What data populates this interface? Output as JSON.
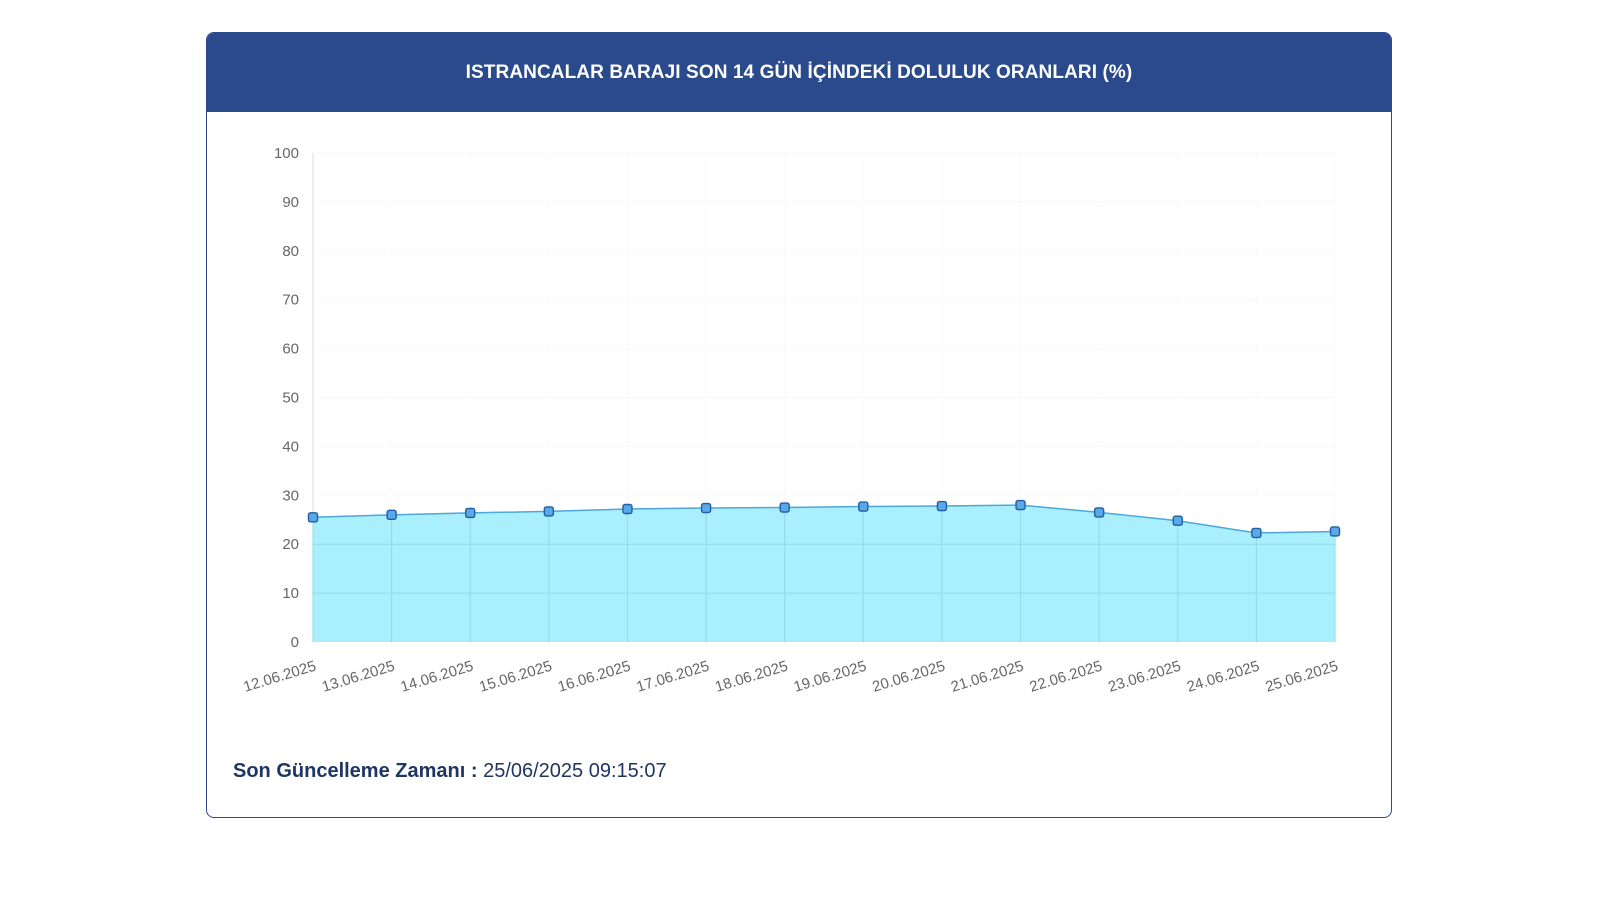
{
  "header": {
    "title": "ISTRANCALAR BARAJI SON 14 GÜN İÇİNDEKİ DOLULUK ORANLARI (%)"
  },
  "footer": {
    "update_label": "Son Güncelleme Zamanı :",
    "update_value": "25/06/2025 09:15:07"
  },
  "colors": {
    "header_bg": "#2b4a8b",
    "area_fill": "#a9effd",
    "line": "#4aa8dd",
    "marker_fill": "#5aa8e6",
    "marker_stroke": "#1f5ea8"
  },
  "chart_data": {
    "type": "area",
    "title": "ISTRANCALAR BARAJI SON 14 GÜN İÇİNDEKİ DOLULUK ORANLARI (%)",
    "xlabel": "",
    "ylabel": "",
    "ylim": [
      0,
      100
    ],
    "yticks": [
      0,
      10,
      20,
      30,
      40,
      50,
      60,
      70,
      80,
      90,
      100
    ],
    "grid": true,
    "categories": [
      "12.06.2025",
      "13.06.2025",
      "14.06.2025",
      "15.06.2025",
      "16.06.2025",
      "17.06.2025",
      "18.06.2025",
      "19.06.2025",
      "20.06.2025",
      "21.06.2025",
      "22.06.2025",
      "23.06.2025",
      "24.06.2025",
      "25.06.2025"
    ],
    "series": [
      {
        "values": [
          25.5,
          26.0,
          26.4,
          26.7,
          27.2,
          27.4,
          27.5,
          27.7,
          27.8,
          28.0,
          26.5,
          24.8,
          22.3,
          22.6
        ]
      }
    ]
  }
}
